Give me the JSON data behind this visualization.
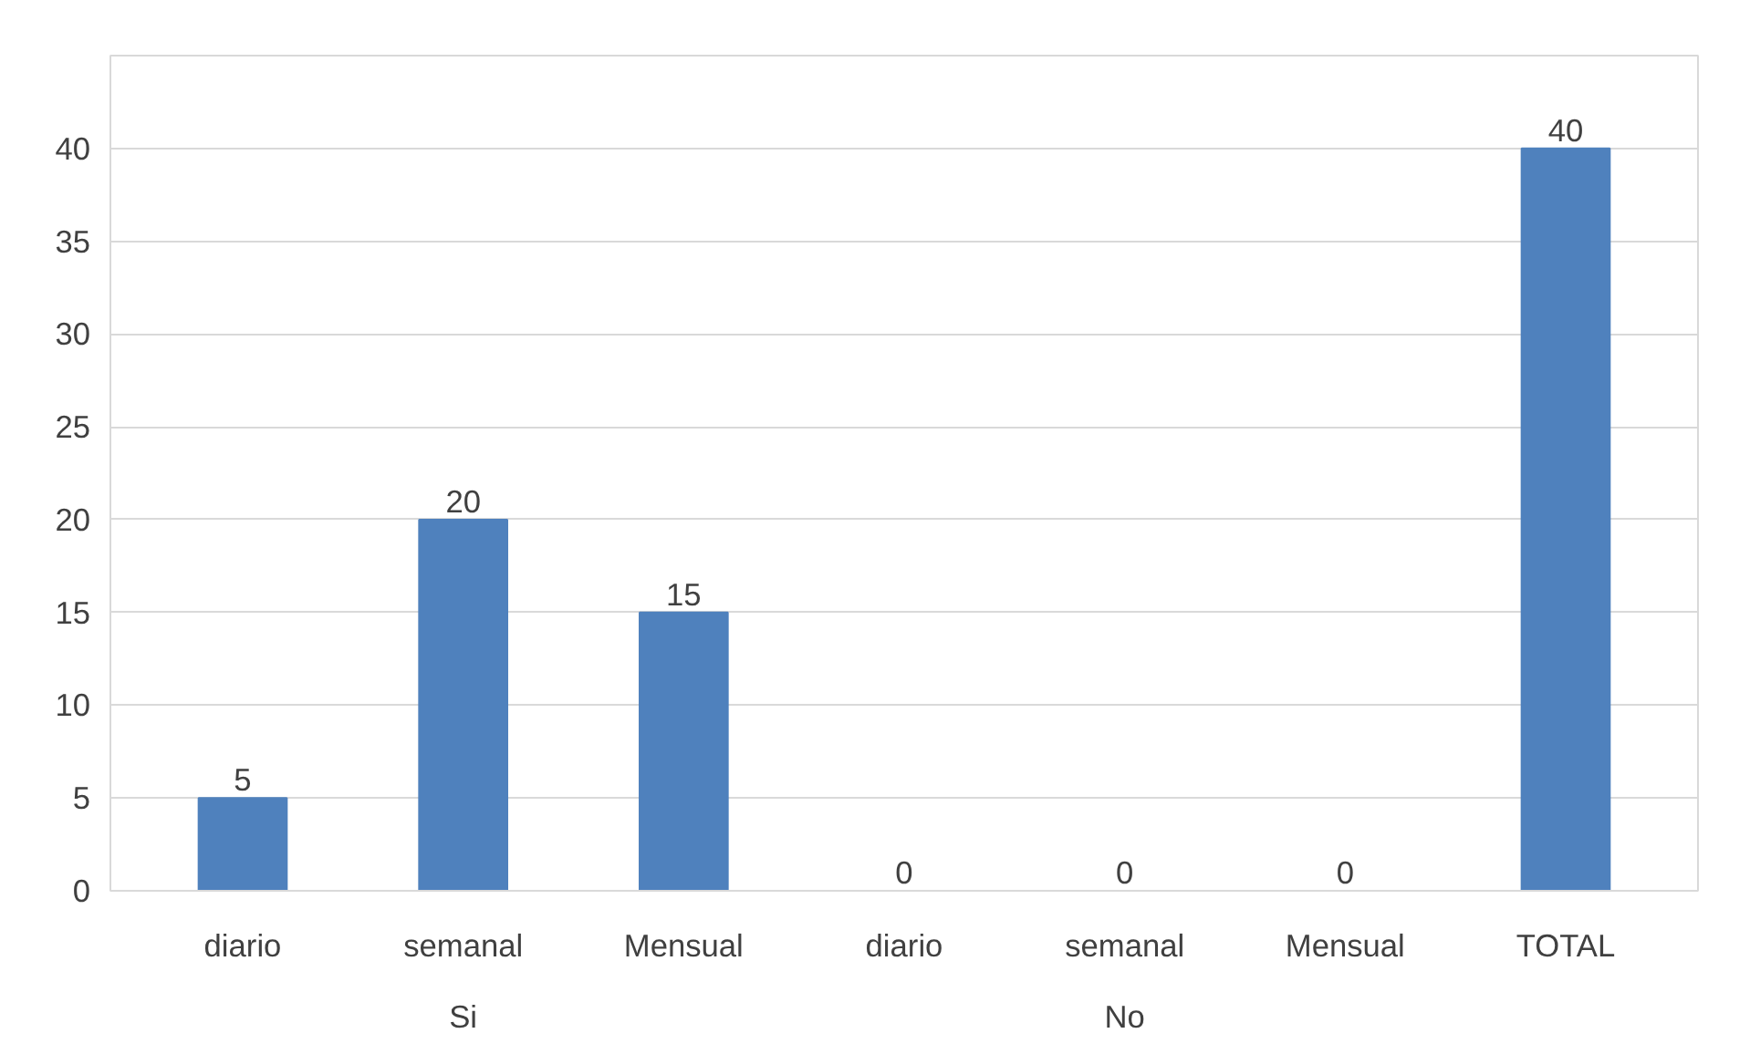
{
  "chart_data": {
    "type": "bar",
    "categories": [
      "diario",
      "semanal",
      "Mensual",
      "diario",
      "semanal",
      "Mensual",
      "TOTAL"
    ],
    "values": [
      5,
      20,
      15,
      0,
      0,
      0,
      40
    ],
    "color": "#4f81bd",
    "ylim": [
      0,
      45
    ],
    "yticks": [
      0,
      5,
      10,
      15,
      20,
      25,
      30,
      35,
      40,
      {
        "value": 45,
        "label": null
      }
    ],
    "grid": "y",
    "data_labels": true,
    "annotations": [
      "Si",
      "No"
    ]
  }
}
